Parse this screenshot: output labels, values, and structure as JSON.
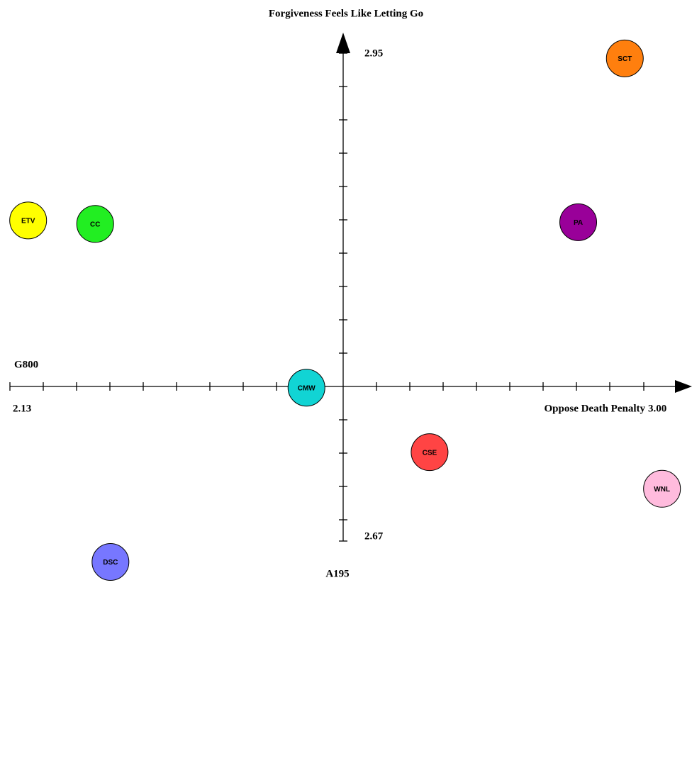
{
  "chart_data": {
    "type": "scatter",
    "y_label": "Forgiveness Feels Like Letting Go",
    "x_label": "Oppose Death Penalty",
    "x_label_negative": "G800",
    "y_label_negative": "A195",
    "xlim": [
      2.13,
      3.0
    ],
    "xticks": [
      2.13,
      {
        "value": 3,
        "label": "3.00"
      }
    ],
    "ylim": [
      2.67,
      2.95
    ],
    "yticks": [
      2.67,
      2.95
    ],
    "points": [
      {
        "name": "SCT",
        "x": 2.974,
        "y": 2.947,
        "color": "#ff7f0e"
      },
      {
        "name": "PA",
        "x": 2.91,
        "y": 2.853,
        "color": "#990099"
      },
      {
        "name": "ETV",
        "x": 2.155,
        "y": 2.854,
        "color": "#ffff00"
      },
      {
        "name": "CC",
        "x": 2.247,
        "y": 2.852,
        "color": "#22ee22"
      },
      {
        "name": "CMW",
        "x": 2.537,
        "y": 2.758,
        "color": "#11d4d4"
      },
      {
        "name": "CSE",
        "x": 2.706,
        "y": 2.721,
        "color": "#ff4444"
      },
      {
        "name": "WNL",
        "x": 3.025,
        "y": 2.7,
        "color": "#ffbbdd"
      },
      {
        "name": "DSC",
        "x": 2.268,
        "y": 2.658,
        "color": "#7777ff"
      }
    ]
  }
}
